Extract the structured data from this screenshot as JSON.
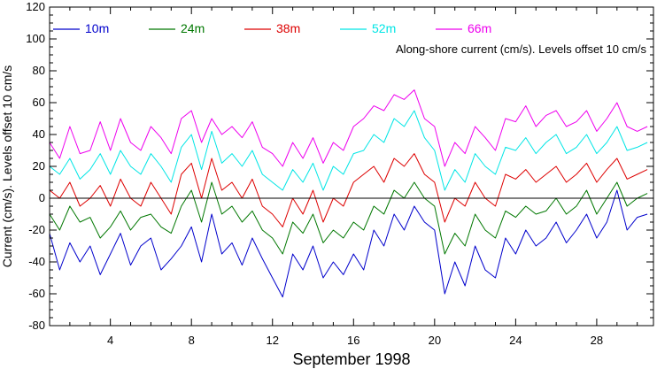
{
  "chart_data": {
    "type": "line",
    "title": "",
    "annotation": "Along-shore current (cm/s). Levels offset 10 cm/s",
    "xlabel": "September 1998",
    "ylabel": "Current (cm/s). Levels offset 10 cm/s",
    "xlim": [
      1,
      30.8
    ],
    "ylim": [
      -80,
      120
    ],
    "x_ticks": [
      4,
      8,
      12,
      16,
      20,
      24,
      28
    ],
    "y_ticks": [
      -80,
      -60,
      -40,
      -20,
      0,
      20,
      40,
      60,
      80,
      100,
      120
    ],
    "zero_line": true,
    "grid": false,
    "legend_position": "top",
    "x": [
      1.0,
      1.5,
      2.0,
      2.5,
      3.0,
      3.5,
      4.0,
      4.5,
      5.0,
      5.5,
      6.0,
      6.5,
      7.0,
      7.5,
      8.0,
      8.5,
      9.0,
      9.5,
      10.0,
      10.5,
      11.0,
      11.5,
      12.0,
      12.5,
      13.0,
      13.5,
      14.0,
      14.5,
      15.0,
      15.5,
      16.0,
      16.5,
      17.0,
      17.5,
      18.0,
      18.5,
      19.0,
      19.5,
      20.0,
      20.5,
      21.0,
      21.5,
      22.0,
      22.5,
      23.0,
      23.5,
      24.0,
      24.5,
      25.0,
      25.5,
      26.0,
      26.5,
      27.0,
      27.5,
      28.0,
      28.5,
      29.0,
      29.5,
      30.0,
      30.5
    ],
    "series": [
      {
        "name": "10m",
        "color": "#0000cc",
        "values": [
          -22,
          -45,
          -28,
          -40,
          -30,
          -48,
          -35,
          -22,
          -42,
          -30,
          -25,
          -45,
          -38,
          -30,
          -18,
          -40,
          -10,
          -35,
          -28,
          -42,
          -25,
          -38,
          -50,
          -62,
          -35,
          -45,
          -30,
          -50,
          -40,
          -48,
          -35,
          -45,
          -20,
          -30,
          -10,
          -20,
          -5,
          -15,
          -20,
          -60,
          -40,
          -55,
          -30,
          -45,
          -50,
          -25,
          -35,
          -20,
          -30,
          -25,
          -15,
          -28,
          -20,
          -10,
          -25,
          -15,
          5,
          -20,
          -12,
          -10
        ]
      },
      {
        "name": "24m",
        "color": "#007700",
        "values": [
          -10,
          -20,
          -5,
          -15,
          -12,
          -25,
          -18,
          -8,
          -20,
          -12,
          -10,
          -18,
          -22,
          -5,
          5,
          -15,
          10,
          -10,
          -5,
          -15,
          -8,
          -20,
          -25,
          -35,
          -15,
          -22,
          -10,
          -28,
          -20,
          -25,
          -15,
          -20,
          -5,
          -10,
          5,
          0,
          10,
          0,
          -5,
          -35,
          -22,
          -30,
          -10,
          -20,
          -25,
          -8,
          -12,
          -5,
          -10,
          -8,
          0,
          -10,
          -5,
          5,
          -10,
          0,
          10,
          -5,
          0,
          3
        ]
      },
      {
        "name": "38m",
        "color": "#dd0000",
        "values": [
          5,
          0,
          10,
          -5,
          0,
          8,
          -5,
          12,
          0,
          -5,
          10,
          0,
          -10,
          15,
          22,
          0,
          25,
          5,
          10,
          0,
          12,
          -5,
          -10,
          -18,
          0,
          -10,
          5,
          -15,
          0,
          -5,
          10,
          15,
          20,
          10,
          25,
          20,
          28,
          15,
          10,
          -15,
          0,
          -5,
          10,
          0,
          -5,
          15,
          12,
          18,
          10,
          15,
          20,
          10,
          15,
          22,
          10,
          18,
          25,
          12,
          15,
          18
        ]
      },
      {
        "name": "52m",
        "color": "#00e5e5",
        "values": [
          20,
          15,
          25,
          12,
          18,
          28,
          15,
          30,
          20,
          15,
          28,
          20,
          10,
          32,
          40,
          18,
          42,
          22,
          28,
          20,
          30,
          15,
          10,
          5,
          18,
          10,
          22,
          5,
          20,
          15,
          28,
          30,
          40,
          35,
          50,
          45,
          55,
          38,
          30,
          5,
          18,
          10,
          28,
          20,
          15,
          32,
          30,
          38,
          28,
          35,
          40,
          28,
          32,
          40,
          28,
          35,
          45,
          30,
          32,
          35
        ]
      },
      {
        "name": "66m",
        "color": "#ee00ee",
        "values": [
          35,
          25,
          45,
          28,
          30,
          48,
          30,
          50,
          35,
          30,
          45,
          38,
          28,
          50,
          55,
          35,
          50,
          40,
          45,
          38,
          48,
          32,
          28,
          20,
          35,
          25,
          38,
          22,
          35,
          30,
          45,
          50,
          58,
          55,
          65,
          62,
          68,
          50,
          45,
          20,
          35,
          28,
          45,
          38,
          30,
          50,
          48,
          58,
          45,
          52,
          55,
          45,
          48,
          55,
          42,
          50,
          60,
          45,
          42,
          45
        ]
      }
    ]
  }
}
